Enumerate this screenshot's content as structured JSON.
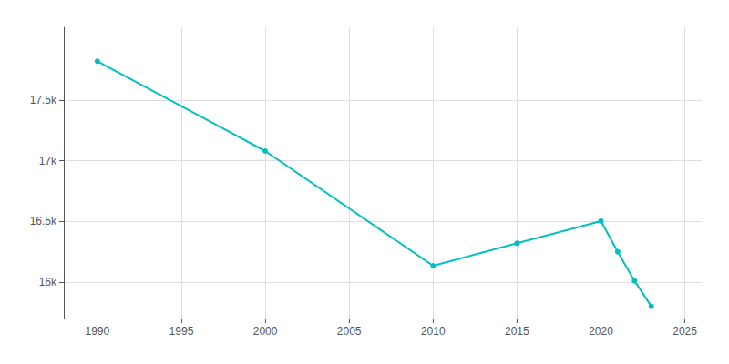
{
  "chart_data": {
    "type": "line",
    "x": [
      1990,
      2000,
      2010,
      2015,
      2020,
      2021,
      2022,
      2023
    ],
    "values": [
      17820,
      17080,
      16135,
      16320,
      16503,
      16250,
      16010,
      15800
    ],
    "color": "#00BFBF",
    "marker": "circle",
    "xlim": [
      1988,
      2026
    ],
    "ylim": [
      15700,
      18100
    ],
    "xticks": [
      1990,
      1995,
      2000,
      2005,
      2010,
      2015,
      2020,
      2025
    ],
    "yticks": [
      {
        "value": 16000,
        "label": "16k"
      },
      {
        "value": 16500,
        "label": "16.5k"
      },
      {
        "value": 17000,
        "label": "17k"
      },
      {
        "value": 17500,
        "label": "17.5k"
      }
    ],
    "grid": true
  }
}
